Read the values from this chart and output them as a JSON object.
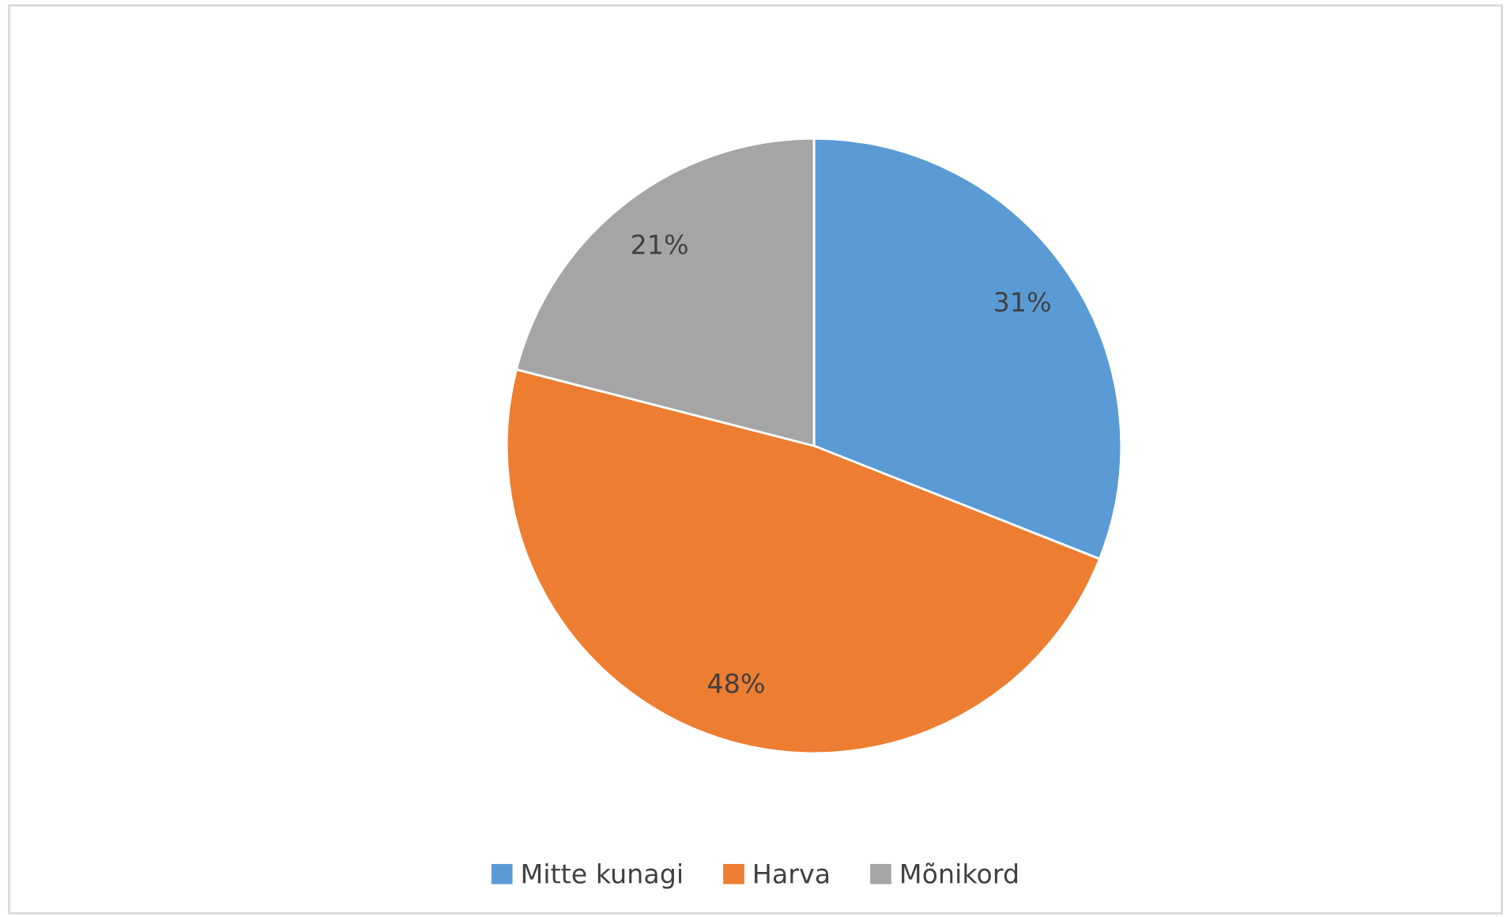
{
  "chart_data": {
    "type": "pie",
    "categories": [
      "Mitte kunagi",
      "Harva",
      "Mõnikord"
    ],
    "values": [
      31,
      48,
      21
    ],
    "colors": [
      "#5b9bd5",
      "#ed7d31",
      "#a5a5a5"
    ],
    "value_labels": [
      "31%",
      "48%",
      "21%"
    ],
    "legend": "bottom"
  }
}
